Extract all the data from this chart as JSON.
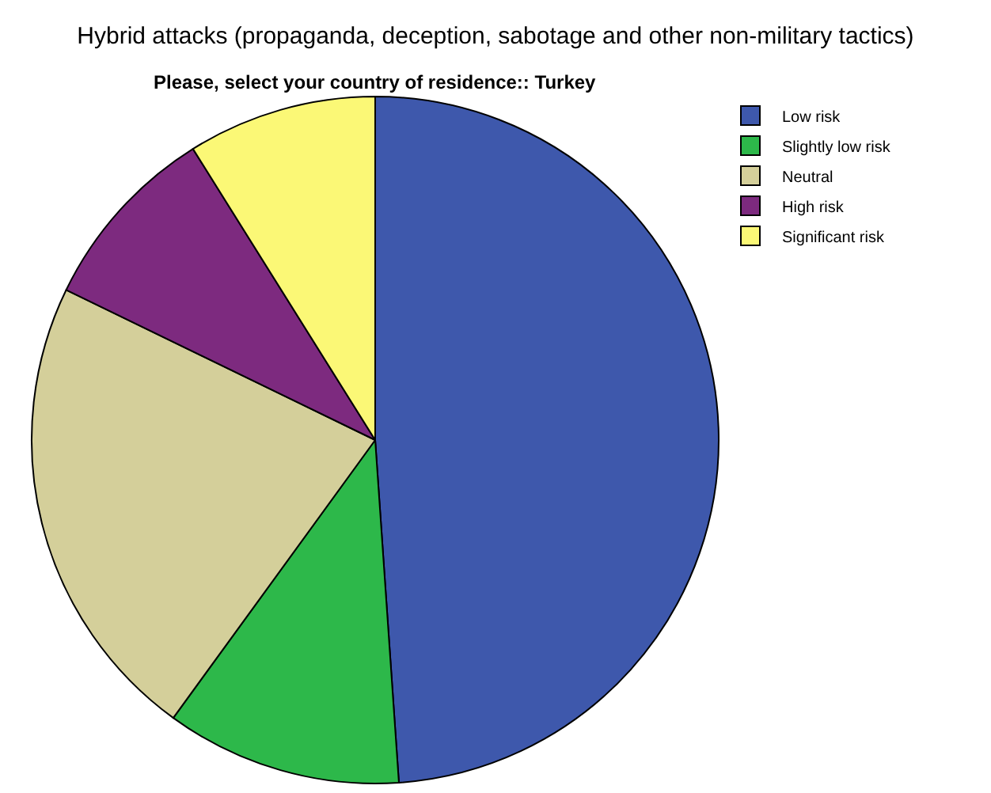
{
  "chart_data": {
    "type": "pie",
    "title": "Hybrid attacks (propaganda, deception, sabotage and other non-military tactics)",
    "subtitle": "Please, select your country of residence:: Turkey",
    "categories": [
      "Low risk",
      "Slightly low risk",
      "Neutral",
      "High risk",
      "Significant risk"
    ],
    "values": [
      48.9,
      11.1,
      22.2,
      8.9,
      8.9
    ],
    "colors": [
      "#3e58ac",
      "#2db84a",
      "#d4cf9a",
      "#7d2a7f",
      "#fbf876"
    ],
    "legend": "top right"
  }
}
